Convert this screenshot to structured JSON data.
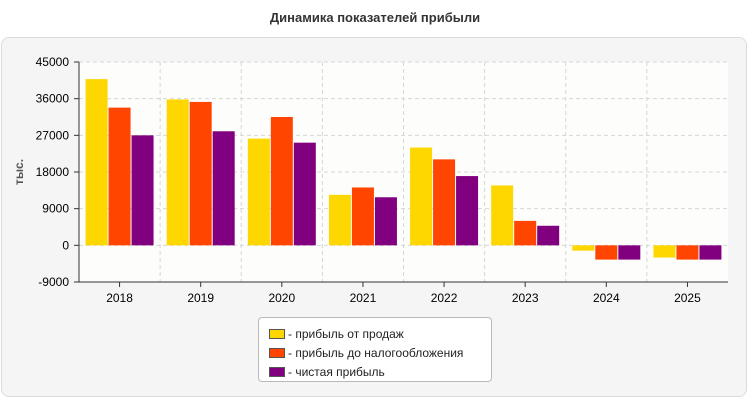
{
  "chart_data": {
    "type": "bar",
    "title": "Динамика показателей прибыли",
    "ylabel": "тыс.",
    "xlabel": "",
    "categories": [
      "2018",
      "2019",
      "2020",
      "2021",
      "2022",
      "2023",
      "2024",
      "2025"
    ],
    "series": [
      {
        "name": "- прибыль от продаж",
        "color": "#FFD700",
        "values": [
          40800,
          35800,
          26200,
          12400,
          24000,
          14700,
          -1300,
          -3000
        ]
      },
      {
        "name": "- прибыль до налогообложения",
        "color": "#FF4500",
        "values": [
          33800,
          35200,
          31500,
          14200,
          21100,
          6000,
          -3500,
          -3500
        ]
      },
      {
        "name": "- чистая прибыль",
        "color": "#800080",
        "values": [
          27000,
          28000,
          25200,
          11800,
          17000,
          4800,
          -3500,
          -3500
        ]
      }
    ],
    "ylim": [
      -9000,
      45000
    ],
    "yticks": [
      "45000",
      "36000",
      "27000",
      "18000",
      "9000",
      "0",
      "-9000"
    ],
    "grid": true,
    "legend_position": "bottom"
  }
}
